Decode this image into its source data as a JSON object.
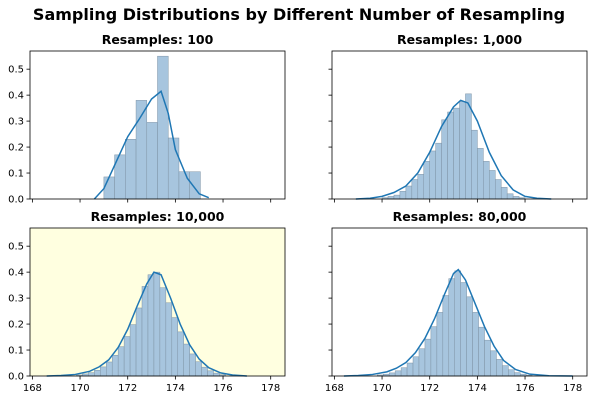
{
  "chart_data": {
    "title": "Sampling Distributions by Different Number of Resampling",
    "x_ticks": [
      168,
      170,
      172,
      174,
      176,
      178
    ],
    "y_ticks": [
      0.0,
      0.1,
      0.2,
      0.3,
      0.4,
      0.5
    ],
    "shared_x": true,
    "shared_y": true,
    "subplots": [
      {
        "type": "histogram",
        "title": "Resamples: 100",
        "background": "#ffffff",
        "xlim": [
          167.9,
          178.6
        ],
        "ylim": [
          0,
          0.57
        ],
        "bins": [
          {
            "x0": 171.0,
            "x1": 171.45,
            "density": 0.085
          },
          {
            "x0": 171.45,
            "x1": 171.9,
            "density": 0.17
          },
          {
            "x0": 171.9,
            "x1": 172.35,
            "density": 0.23
          },
          {
            "x0": 172.35,
            "x1": 172.8,
            "density": 0.38
          },
          {
            "x0": 172.8,
            "x1": 173.25,
            "density": 0.295
          },
          {
            "x0": 173.25,
            "x1": 173.7,
            "density": 0.55
          },
          {
            "x0": 173.7,
            "x1": 174.15,
            "density": 0.235
          },
          {
            "x0": 174.15,
            "x1": 174.6,
            "density": 0.105
          },
          {
            "x0": 174.6,
            "x1": 175.05,
            "density": 0.105
          }
        ],
        "kde": {
          "x": [
            170.6,
            171.0,
            171.5,
            172.0,
            172.5,
            173.0,
            173.4,
            173.7,
            174.0,
            174.5,
            175.0,
            175.4
          ],
          "y": [
            0.0,
            0.04,
            0.14,
            0.24,
            0.31,
            0.385,
            0.415,
            0.33,
            0.19,
            0.08,
            0.02,
            0.005
          ]
        }
      },
      {
        "type": "histogram",
        "title": "Resamples: 1,000",
        "background": "#ffffff",
        "xlim": [
          167.9,
          178.6
        ],
        "ylim": [
          0,
          0.57
        ],
        "bins": [
          {
            "x0": 170.0,
            "x1": 170.25,
            "density": 0.005
          },
          {
            "x0": 170.25,
            "x1": 170.5,
            "density": 0.01
          },
          {
            "x0": 170.5,
            "x1": 170.75,
            "density": 0.015
          },
          {
            "x0": 170.75,
            "x1": 171.0,
            "density": 0.03
          },
          {
            "x0": 171.0,
            "x1": 171.25,
            "density": 0.05
          },
          {
            "x0": 171.25,
            "x1": 171.5,
            "density": 0.075
          },
          {
            "x0": 171.5,
            "x1": 171.75,
            "density": 0.095
          },
          {
            "x0": 171.75,
            "x1": 172.0,
            "density": 0.145
          },
          {
            "x0": 172.0,
            "x1": 172.25,
            "density": 0.185
          },
          {
            "x0": 172.25,
            "x1": 172.5,
            "density": 0.215
          },
          {
            "x0": 172.5,
            "x1": 172.75,
            "density": 0.305
          },
          {
            "x0": 172.75,
            "x1": 173.0,
            "density": 0.335
          },
          {
            "x0": 173.0,
            "x1": 173.25,
            "density": 0.35
          },
          {
            "x0": 173.25,
            "x1": 173.5,
            "density": 0.375
          },
          {
            "x0": 173.5,
            "x1": 173.75,
            "density": 0.405
          },
          {
            "x0": 173.75,
            "x1": 174.0,
            "density": 0.265
          },
          {
            "x0": 174.0,
            "x1": 174.25,
            "density": 0.195
          },
          {
            "x0": 174.25,
            "x1": 174.5,
            "density": 0.145
          },
          {
            "x0": 174.5,
            "x1": 174.75,
            "density": 0.11
          },
          {
            "x0": 174.75,
            "x1": 175.0,
            "density": 0.075
          },
          {
            "x0": 175.0,
            "x1": 175.25,
            "density": 0.045
          },
          {
            "x0": 175.25,
            "x1": 175.5,
            "density": 0.02
          },
          {
            "x0": 175.5,
            "x1": 175.75,
            "density": 0.01
          },
          {
            "x0": 175.75,
            "x1": 176.0,
            "density": 0.005
          }
        ],
        "kde": {
          "x": [
            168.9,
            169.5,
            170.0,
            170.5,
            171.0,
            171.5,
            172.0,
            172.5,
            173.0,
            173.3,
            173.6,
            174.0,
            174.5,
            175.0,
            175.5,
            176.0,
            176.5,
            177.1
          ],
          "y": [
            0.0,
            0.003,
            0.01,
            0.025,
            0.05,
            0.1,
            0.18,
            0.28,
            0.355,
            0.38,
            0.37,
            0.3,
            0.18,
            0.09,
            0.035,
            0.01,
            0.003,
            0.0
          ]
        }
      },
      {
        "type": "histogram",
        "title": "Resamples: 10,000",
        "background": "#ffffe0",
        "xlim": [
          167.9,
          178.6
        ],
        "ylim": [
          0,
          0.57
        ],
        "bins": [
          {
            "x0": 169.85,
            "x1": 170.1,
            "density": 0.004
          },
          {
            "x0": 170.1,
            "x1": 170.35,
            "density": 0.008
          },
          {
            "x0": 170.35,
            "x1": 170.6,
            "density": 0.013
          },
          {
            "x0": 170.6,
            "x1": 170.85,
            "density": 0.022
          },
          {
            "x0": 170.85,
            "x1": 171.1,
            "density": 0.035
          },
          {
            "x0": 171.1,
            "x1": 171.35,
            "density": 0.054
          },
          {
            "x0": 171.35,
            "x1": 171.6,
            "density": 0.08
          },
          {
            "x0": 171.6,
            "x1": 171.85,
            "density": 0.113
          },
          {
            "x0": 171.85,
            "x1": 172.1,
            "density": 0.152
          },
          {
            "x0": 172.1,
            "x1": 172.35,
            "density": 0.198
          },
          {
            "x0": 172.35,
            "x1": 172.6,
            "density": 0.262
          },
          {
            "x0": 172.6,
            "x1": 172.85,
            "density": 0.345
          },
          {
            "x0": 172.85,
            "x1": 173.1,
            "density": 0.39
          },
          {
            "x0": 173.1,
            "x1": 173.35,
            "density": 0.4
          },
          {
            "x0": 173.35,
            "x1": 173.6,
            "density": 0.34
          },
          {
            "x0": 173.6,
            "x1": 173.85,
            "density": 0.282
          },
          {
            "x0": 173.85,
            "x1": 174.1,
            "density": 0.225
          },
          {
            "x0": 174.1,
            "x1": 174.35,
            "density": 0.17
          },
          {
            "x0": 174.35,
            "x1": 174.6,
            "density": 0.123
          },
          {
            "x0": 174.6,
            "x1": 174.85,
            "density": 0.085
          },
          {
            "x0": 174.85,
            "x1": 175.1,
            "density": 0.055
          },
          {
            "x0": 175.1,
            "x1": 175.35,
            "density": 0.034
          },
          {
            "x0": 175.35,
            "x1": 175.6,
            "density": 0.02
          },
          {
            "x0": 175.6,
            "x1": 175.85,
            "density": 0.011
          },
          {
            "x0": 175.85,
            "x1": 176.1,
            "density": 0.005
          }
        ],
        "kde": {
          "x": [
            168.6,
            169.2,
            169.8,
            170.4,
            170.8,
            171.2,
            171.6,
            172.0,
            172.4,
            172.8,
            173.1,
            173.4,
            173.8,
            174.2,
            174.6,
            175.0,
            175.4,
            175.9,
            176.4,
            177.0
          ],
          "y": [
            0.0,
            0.002,
            0.006,
            0.018,
            0.035,
            0.062,
            0.11,
            0.18,
            0.27,
            0.355,
            0.4,
            0.39,
            0.3,
            0.2,
            0.12,
            0.065,
            0.032,
            0.012,
            0.004,
            0.0
          ]
        }
      },
      {
        "type": "histogram",
        "title": "Resamples: 80,000",
        "background": "#ffffff",
        "xlim": [
          167.9,
          178.6
        ],
        "ylim": [
          0,
          0.57
        ],
        "bins": [
          {
            "x0": 169.8,
            "x1": 170.05,
            "density": 0.004
          },
          {
            "x0": 170.05,
            "x1": 170.3,
            "density": 0.007
          },
          {
            "x0": 170.3,
            "x1": 170.55,
            "density": 0.012
          },
          {
            "x0": 170.55,
            "x1": 170.8,
            "density": 0.02
          },
          {
            "x0": 170.8,
            "x1": 171.05,
            "density": 0.032
          },
          {
            "x0": 171.05,
            "x1": 171.3,
            "density": 0.05
          },
          {
            "x0": 171.3,
            "x1": 171.55,
            "density": 0.074
          },
          {
            "x0": 171.55,
            "x1": 171.8,
            "density": 0.105
          },
          {
            "x0": 171.8,
            "x1": 172.05,
            "density": 0.142
          },
          {
            "x0": 172.05,
            "x1": 172.3,
            "density": 0.19
          },
          {
            "x0": 172.3,
            "x1": 172.55,
            "density": 0.245
          },
          {
            "x0": 172.55,
            "x1": 172.8,
            "density": 0.31
          },
          {
            "x0": 172.8,
            "x1": 173.05,
            "density": 0.375
          },
          {
            "x0": 173.05,
            "x1": 173.3,
            "density": 0.405
          },
          {
            "x0": 173.3,
            "x1": 173.55,
            "density": 0.36
          },
          {
            "x0": 173.55,
            "x1": 173.8,
            "density": 0.305
          },
          {
            "x0": 173.8,
            "x1": 174.05,
            "density": 0.245
          },
          {
            "x0": 174.05,
            "x1": 174.3,
            "density": 0.188
          },
          {
            "x0": 174.3,
            "x1": 174.55,
            "density": 0.138
          },
          {
            "x0": 174.55,
            "x1": 174.8,
            "density": 0.097
          },
          {
            "x0": 174.8,
            "x1": 175.05,
            "density": 0.064
          },
          {
            "x0": 175.05,
            "x1": 175.3,
            "density": 0.04
          },
          {
            "x0": 175.3,
            "x1": 175.55,
            "density": 0.024
          },
          {
            "x0": 175.55,
            "x1": 175.8,
            "density": 0.013
          },
          {
            "x0": 175.8,
            "x1": 176.05,
            "density": 0.007
          },
          {
            "x0": 176.05,
            "x1": 176.3,
            "density": 0.003
          }
        ],
        "kde": {
          "x": [
            168.4,
            169.0,
            169.6,
            170.2,
            170.6,
            171.0,
            171.4,
            171.8,
            172.2,
            172.6,
            173.0,
            173.2,
            173.5,
            173.9,
            174.3,
            174.7,
            175.1,
            175.6,
            176.2,
            177.0,
            178.0
          ],
          "y": [
            0.0,
            0.002,
            0.006,
            0.016,
            0.03,
            0.052,
            0.09,
            0.145,
            0.22,
            0.31,
            0.395,
            0.41,
            0.37,
            0.28,
            0.19,
            0.115,
            0.06,
            0.025,
            0.007,
            0.001,
            0.0
          ]
        }
      }
    ]
  }
}
